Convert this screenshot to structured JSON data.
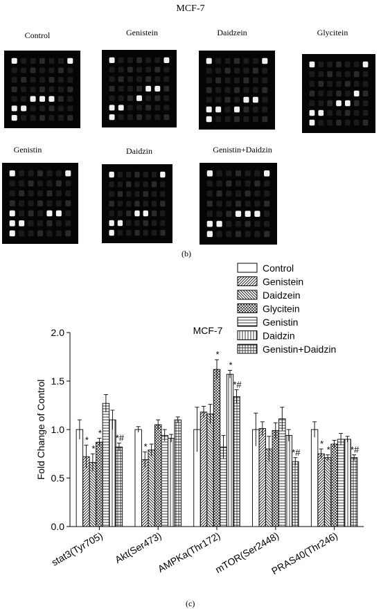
{
  "panel_b": {
    "title": "MCF-7",
    "letter": "(b)",
    "blots": [
      {
        "label": "Control"
      },
      {
        "label": "Genistein"
      },
      {
        "label": "Daidzein"
      },
      {
        "label": "Glycitein"
      },
      {
        "label": "Genistin"
      },
      {
        "label": "Daidzin"
      },
      {
        "label": "Genistin+Daidzin"
      }
    ]
  },
  "panel_c": {
    "letter": "(c)"
  },
  "chart_data": {
    "type": "bar",
    "title": "MCF-7",
    "xlabel": "",
    "ylabel": "Fold Change of Control",
    "ylim": [
      0,
      2.0
    ],
    "yticks": [
      "0.0",
      "0.5",
      "1.0",
      "1.5",
      "2.0"
    ],
    "categories": [
      "stat3(Tyr705)",
      "Akt(Ser473)",
      "AMPKa(Thr172)",
      "mTOR(Ser2448)",
      "PRAS40(Thr246)"
    ],
    "legend_position": "top-right",
    "series": [
      {
        "name": "Control",
        "pattern": "plain",
        "values": [
          1.0,
          1.0,
          1.0,
          1.0,
          1.0
        ],
        "errors": [
          0.1,
          0.03,
          0.23,
          0.17,
          0.08
        ],
        "annotations": [
          "",
          "",
          "",
          "",
          ""
        ]
      },
      {
        "name": "Genistein",
        "pattern": "diag-right",
        "values": [
          0.72,
          0.69,
          1.18,
          1.01,
          0.75
        ],
        "errors": [
          0.12,
          0.08,
          0.06,
          0.07,
          0.05
        ],
        "annotations": [
          "*",
          "*",
          "",
          "",
          "*"
        ]
      },
      {
        "name": "Daidzein",
        "pattern": "diag-left",
        "values": [
          0.66,
          0.79,
          1.16,
          0.8,
          0.71
        ],
        "errors": [
          0.09,
          0.06,
          0.1,
          0.13,
          0.03
        ],
        "annotations": [
          "*",
          "",
          "",
          "",
          "*"
        ]
      },
      {
        "name": "Glycitein",
        "pattern": "crosshatch",
        "values": [
          0.87,
          1.05,
          1.62,
          0.99,
          0.85
        ],
        "errors": [
          0.04,
          0.05,
          0.1,
          0.08,
          0.04
        ],
        "annotations": [
          "*",
          "",
          "*",
          "",
          ""
        ]
      },
      {
        "name": "Genistin",
        "pattern": "horizontal",
        "values": [
          1.27,
          0.94,
          0.82,
          1.11,
          0.9
        ],
        "errors": [
          0.09,
          0.06,
          0.12,
          0.12,
          0.06
        ],
        "annotations": [
          "",
          "",
          "",
          "",
          ""
        ]
      },
      {
        "name": "Daidzin",
        "pattern": "vertical",
        "values": [
          1.1,
          0.91,
          1.57,
          0.94,
          0.9
        ],
        "errors": [
          0.1,
          0.04,
          0.04,
          0.06,
          0.03
        ],
        "annotations": [
          "",
          "",
          "*",
          "",
          ""
        ]
      },
      {
        "name": "Genistin+Daidzin",
        "pattern": "grid",
        "values": [
          0.82,
          1.1,
          1.34,
          0.67,
          0.71
        ],
        "errors": [
          0.04,
          0.03,
          0.07,
          0.04,
          0.03
        ],
        "annotations": [
          "*#",
          "",
          "*#",
          "*#",
          "*#"
        ]
      }
    ]
  }
}
